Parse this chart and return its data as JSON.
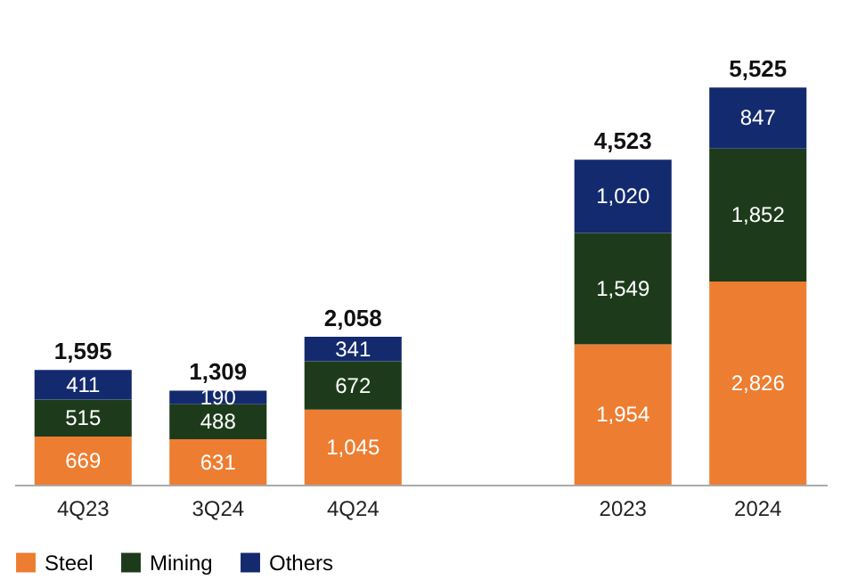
{
  "chart_data": {
    "type": "bar",
    "stacked": true,
    "legend": "bottom",
    "tick_labels": "x",
    "categories": [
      "4Q23",
      "3Q24",
      "4Q24",
      null,
      "2023",
      "2024"
    ],
    "series": [
      {
        "name": "Steel",
        "color": "#ed7d31",
        "values": [
          669,
          631,
          1045,
          null,
          1954,
          2826
        ],
        "value_labels": [
          "669",
          "631",
          "1,045",
          null,
          "1,954",
          "2,826"
        ]
      },
      {
        "name": "Mining",
        "color": "#1d3b1b",
        "values": [
          515,
          488,
          672,
          null,
          1549,
          1852
        ],
        "value_labels": [
          "515",
          "488",
          "672",
          null,
          "1,549",
          "1,852"
        ]
      },
      {
        "name": "Others",
        "color": "#142a6e",
        "values": [
          411,
          190,
          341,
          null,
          1020,
          847
        ],
        "value_labels": [
          "411",
          "190",
          "341",
          null,
          "1,020",
          "847"
        ]
      }
    ],
    "totals": [
      "1,595",
      "1,309",
      "2,058",
      null,
      "4,523",
      "5,525"
    ]
  }
}
